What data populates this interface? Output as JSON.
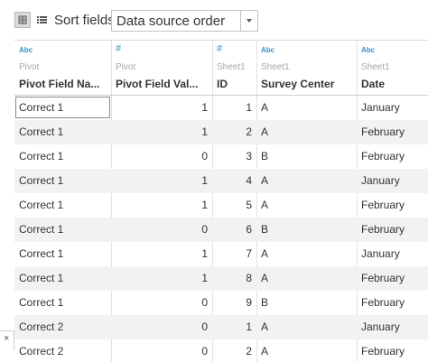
{
  "toolbar": {
    "grid_view_icon": "grid-view-icon",
    "list_view_icon": "list-view-icon",
    "sort_label": "Sort fields",
    "sort_value": "Data source order",
    "dropdown_icon": "chevron-down-icon"
  },
  "table": {
    "columns": [
      {
        "type": "Abc",
        "source": "Pivot",
        "name": "Pivot Field Na..."
      },
      {
        "type": "#",
        "source": "Pivot",
        "name": "Pivot Field Val..."
      },
      {
        "type": "#",
        "source": "Sheet1",
        "name": "ID"
      },
      {
        "type": "Abc",
        "source": "Sheet1",
        "name": "Survey Center"
      },
      {
        "type": "Abc",
        "source": "Sheet1",
        "name": "Date"
      }
    ],
    "rows": [
      [
        "Correct 1",
        "1",
        "1",
        "A",
        "January"
      ],
      [
        "Correct 1",
        "1",
        "2",
        "A",
        "February"
      ],
      [
        "Correct 1",
        "0",
        "3",
        "B",
        "February"
      ],
      [
        "Correct 1",
        "1",
        "4",
        "A",
        "January"
      ],
      [
        "Correct 1",
        "1",
        "5",
        "A",
        "February"
      ],
      [
        "Correct 1",
        "0",
        "6",
        "B",
        "February"
      ],
      [
        "Correct 1",
        "1",
        "7",
        "A",
        "January"
      ],
      [
        "Correct 1",
        "1",
        "8",
        "A",
        "February"
      ],
      [
        "Correct 1",
        "0",
        "9",
        "B",
        "February"
      ],
      [
        "Correct 2",
        "0",
        "1",
        "A",
        "January"
      ],
      [
        "Correct 2",
        "0",
        "2",
        "A",
        "February"
      ]
    ]
  },
  "side_close": {
    "icon": "close-icon",
    "glyph": "×"
  },
  "colors": {
    "type_icon": "#3d8bbd",
    "alt_row": "#f2f2f2",
    "header_source": "#a6a6a6"
  }
}
